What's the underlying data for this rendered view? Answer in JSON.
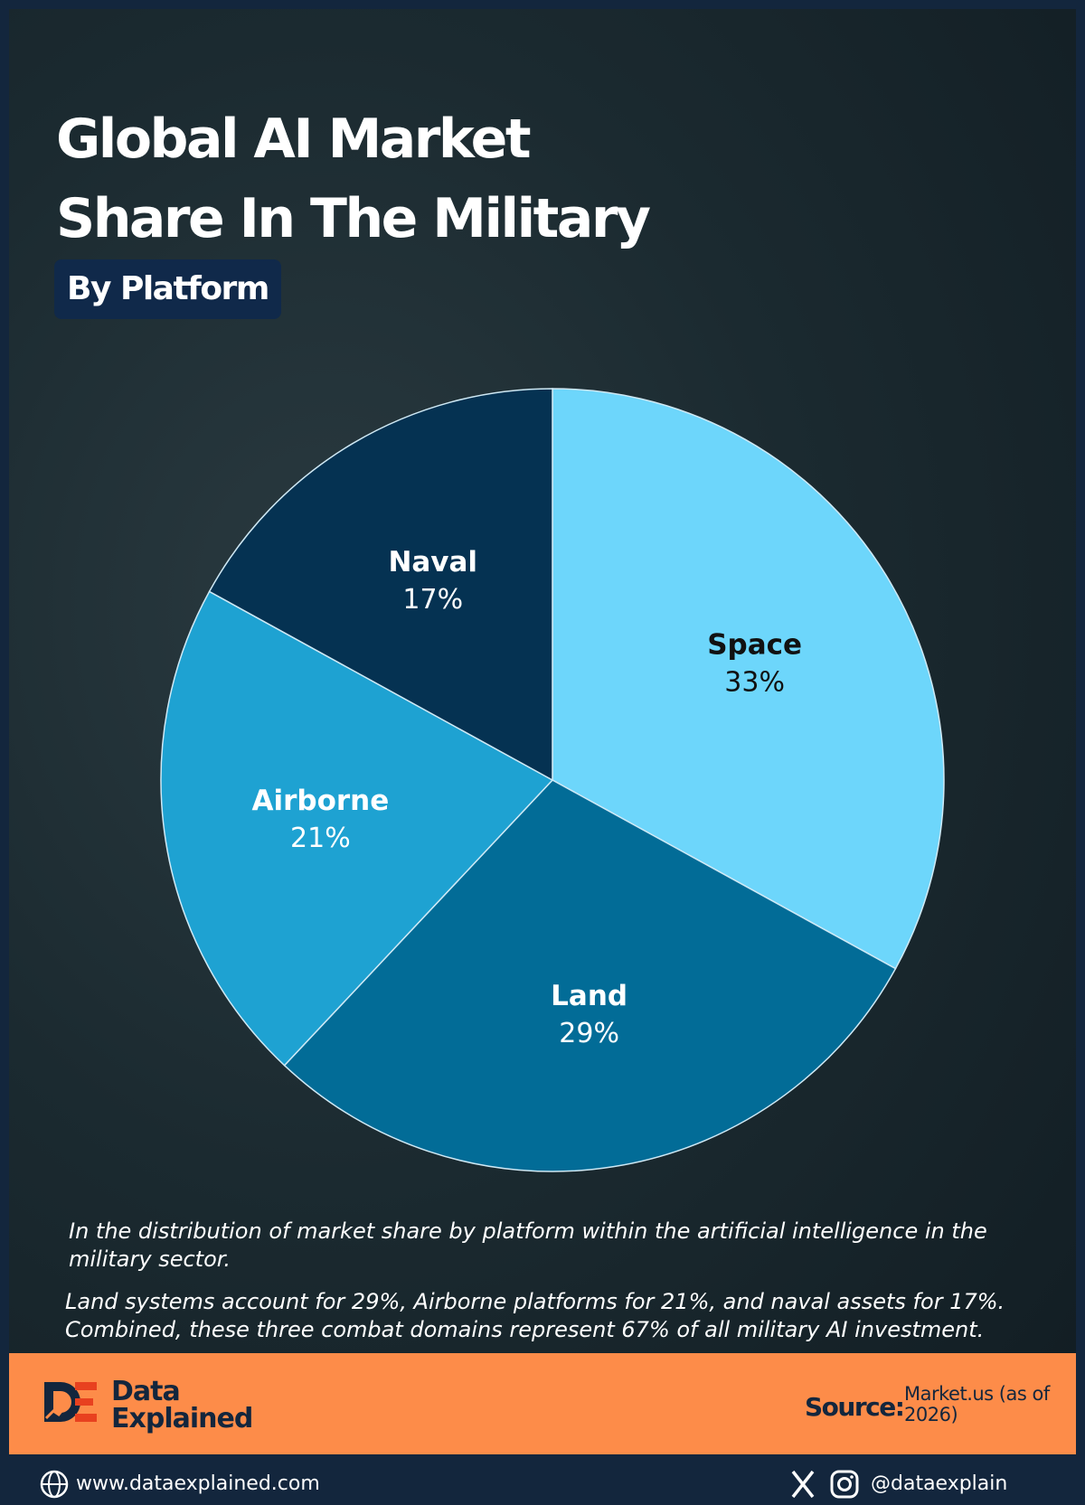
{
  "chart_data": {
    "type": "pie",
    "title": "Global AI Market Share In The Military",
    "subtitle": "By Platform",
    "categories": [
      "Space",
      "Land",
      "Airborne",
      "Naval"
    ],
    "values": [
      33,
      29,
      21,
      17
    ],
    "value_labels": [
      "33%",
      "29%",
      "21%",
      "17%"
    ],
    "colors": [
      "#6dd6fb",
      "#026c97",
      "#1ea2d2",
      "#053252"
    ],
    "label_colors": [
      "#111111",
      "#ffffff",
      "#ffffff",
      "#ffffff"
    ]
  },
  "notes": [
    "In the distribution of market share by platform within the artificial intelligence in the military sector.",
    "Land systems account for 29%, Airborne platforms for 21%, and naval assets for 17%. Combined, these three combat domains represent 67% of all military AI investment."
  ],
  "footer": {
    "brand": [
      "Data",
      "Explained"
    ],
    "source_label": "Source:",
    "source": "Market.us (as of 2026)",
    "website": "www.dataexplained.com",
    "handle": "@dataexplain"
  }
}
